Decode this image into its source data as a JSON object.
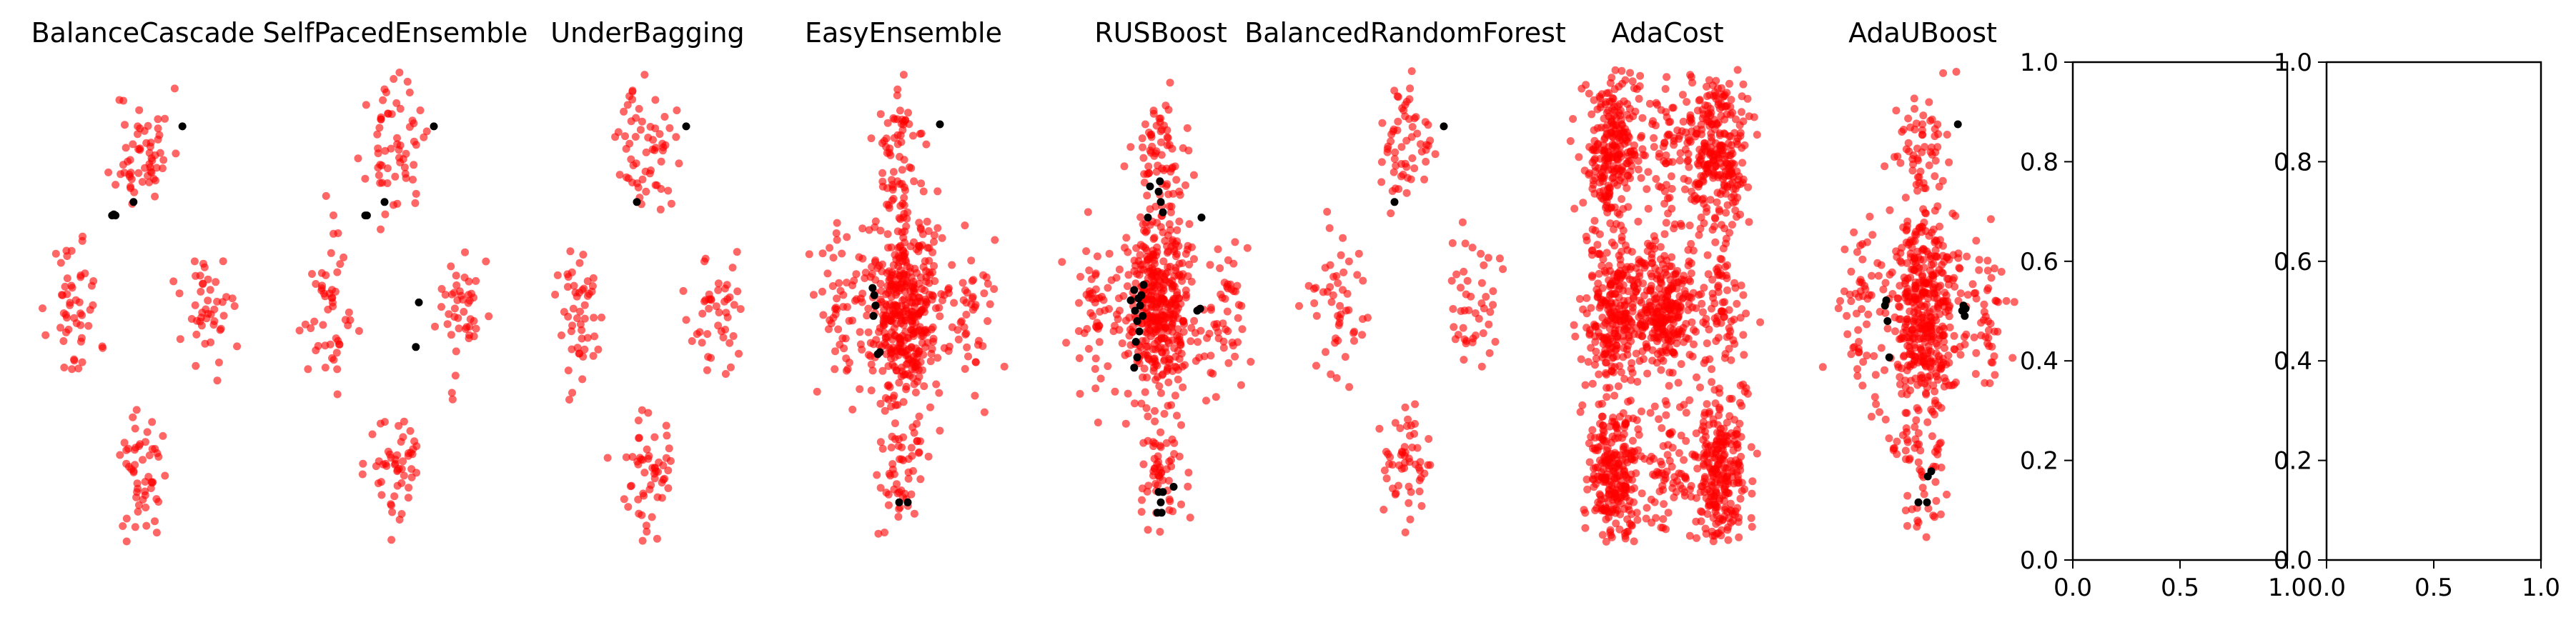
{
  "colors": {
    "red": "#ff0000",
    "black": "#000000"
  },
  "chart_data": [
    {
      "type": "scatter",
      "title": "BalanceCascade",
      "axis": "off",
      "seed": 11,
      "style": "sparse",
      "black_points": [
        [
          -0.72,
          0.92
        ],
        [
          -0.68,
          0.93
        ],
        [
          -0.22,
          1.05
        ],
        [
          0.92,
          1.78
        ],
        [
          -0.64,
          0.92
        ]
      ]
    },
    {
      "type": "scatter",
      "title": "SelfPacedEnsemble",
      "axis": "off",
      "seed": 23,
      "style": "sparse",
      "black_points": [
        [
          -0.7,
          0.92
        ],
        [
          -0.66,
          0.92
        ],
        [
          -0.25,
          1.05
        ],
        [
          0.9,
          1.78
        ],
        [
          0.55,
          0.08
        ],
        [
          0.48,
          -0.35
        ]
      ]
    },
    {
      "type": "scatter",
      "title": "UnderBagging",
      "axis": "off",
      "seed": 37,
      "style": "sparse",
      "black_points": [
        [
          -0.25,
          1.05
        ],
        [
          0.9,
          1.78
        ]
      ]
    },
    {
      "type": "scatter",
      "title": "EasyEnsemble",
      "axis": "off",
      "seed": 41,
      "style": "dense-center",
      "black_points": [
        [
          -0.72,
          0.22
        ],
        [
          -0.68,
          0.15
        ],
        [
          -0.65,
          0.05
        ],
        [
          -0.7,
          -0.05
        ],
        [
          -0.6,
          -0.42
        ],
        [
          -0.55,
          -0.4
        ],
        [
          -0.1,
          -1.85
        ],
        [
          0.1,
          -1.85
        ],
        [
          0.85,
          1.8
        ]
      ]
    },
    {
      "type": "scatter",
      "title": "RUSBoost",
      "axis": "off",
      "seed": 53,
      "style": "dense-center",
      "black_points": [
        [
          -0.7,
          0.1
        ],
        [
          -0.62,
          0.2
        ],
        [
          -0.6,
          0.0
        ],
        [
          -0.55,
          -0.1
        ],
        [
          -0.52,
          0.12
        ],
        [
          -0.5,
          -0.2
        ],
        [
          -0.48,
          0.05
        ],
        [
          -0.45,
          0.15
        ],
        [
          -0.58,
          -0.3
        ],
        [
          -0.42,
          -0.05
        ],
        [
          -0.55,
          -0.45
        ],
        [
          -0.62,
          -0.55
        ],
        [
          -0.4,
          0.25
        ],
        [
          -0.3,
          0.9
        ],
        [
          -0.25,
          1.2
        ],
        [
          -0.05,
          1.15
        ],
        [
          -0.02,
          1.25
        ],
        [
          0.0,
          1.05
        ],
        [
          0.05,
          0.95
        ],
        [
          0.95,
          0.9
        ],
        [
          0.85,
          0.0
        ],
        [
          0.92,
          0.02
        ],
        [
          -0.05,
          -1.75
        ],
        [
          0.05,
          -1.75
        ],
        [
          0.0,
          -1.85
        ],
        [
          -0.08,
          -1.95
        ],
        [
          0.02,
          -1.95
        ],
        [
          0.3,
          -1.7
        ]
      ]
    },
    {
      "type": "scatter",
      "title": "BalancedRandomForest",
      "axis": "off",
      "seed": 67,
      "style": "sparse",
      "black_points": [
        [
          -0.25,
          1.05
        ],
        [
          0.9,
          1.78
        ]
      ]
    },
    {
      "type": "scatter",
      "title": "AdaCost",
      "axis": "off",
      "seed": 71,
      "style": "dense-grid",
      "black_points": []
    },
    {
      "type": "scatter",
      "title": "AdaUBoost",
      "axis": "off",
      "seed": 83,
      "style": "dense-center",
      "black_points": [
        [
          -0.88,
          0.05
        ],
        [
          -0.85,
          0.1
        ],
        [
          -0.82,
          -0.1
        ],
        [
          -0.78,
          -0.45
        ],
        [
          0.82,
          1.8
        ],
        [
          0.95,
          0.05
        ],
        [
          0.98,
          -0.05
        ],
        [
          0.92,
          0.0
        ],
        [
          1.0,
          0.02
        ],
        [
          -0.1,
          -1.85
        ],
        [
          0.1,
          -1.85
        ],
        [
          0.12,
          -1.6
        ],
        [
          0.2,
          -1.55
        ]
      ]
    },
    {
      "type": "scatter",
      "title": "",
      "axis": "on",
      "xlim": [
        0.0,
        1.0
      ],
      "ylim": [
        0.0,
        1.0
      ],
      "xticks": [
        "0.0",
        "0.5",
        "1.0"
      ],
      "yticks": [
        "0.0",
        "0.2",
        "0.4",
        "0.6",
        "0.8",
        "1.0"
      ]
    },
    {
      "type": "scatter",
      "title": "",
      "axis": "on",
      "xlim": [
        0.0,
        1.0
      ],
      "ylim": [
        0.0,
        1.0
      ],
      "xticks": [
        "0.0",
        "0.5",
        "1.0"
      ],
      "yticks": [
        "0.0",
        "0.2",
        "0.4",
        "0.6",
        "0.8",
        "1.0"
      ]
    }
  ]
}
